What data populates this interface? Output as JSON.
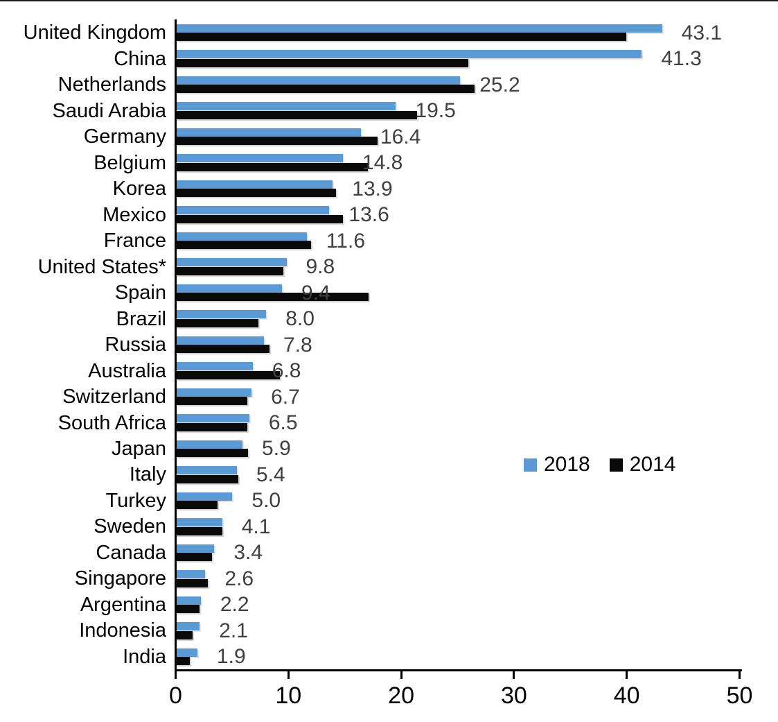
{
  "chart_data": {
    "type": "bar",
    "orientation": "horizontal",
    "title": "",
    "xlabel": "",
    "ylabel": "",
    "xlim": [
      0,
      50
    ],
    "x_ticks": [
      0,
      10,
      20,
      30,
      40,
      50
    ],
    "grid": false,
    "legend": {
      "position": "middle-right",
      "entries": [
        "2018",
        "2014"
      ]
    },
    "categories": [
      "United Kingdom",
      "China",
      "Netherlands",
      "Saudi Arabia",
      "Germany",
      "Belgium",
      "Korea",
      "Mexico",
      "France",
      "United States*",
      "Spain",
      "Brazil",
      "Russia",
      "Australia",
      "Switzerland",
      "South Africa",
      "Japan",
      "Italy",
      "Turkey",
      "Sweden",
      "Canada",
      "Singapore",
      "Argentina",
      "Indonesia",
      "India"
    ],
    "series": [
      {
        "name": "2018",
        "color": "#5B9BD5",
        "values": [
          43.1,
          41.3,
          25.2,
          19.5,
          16.4,
          14.8,
          13.9,
          13.6,
          11.6,
          9.8,
          9.4,
          8.0,
          7.8,
          6.8,
          6.7,
          6.5,
          5.9,
          5.4,
          5.0,
          4.1,
          3.4,
          2.6,
          2.2,
          2.1,
          1.9
        ],
        "labels": [
          "43.1",
          "41.3",
          "25.2",
          "19.5",
          "16.4",
          "14.8",
          "13.9",
          "13.6",
          "11.6",
          "9.8",
          "9.4",
          "8.0",
          "7.8",
          "6.8",
          "6.7",
          "6.5",
          "5.9",
          "5.4",
          "5.0",
          "4.1",
          "3.4",
          "2.6",
          "2.2",
          "2.1",
          "1.9"
        ]
      },
      {
        "name": "2014",
        "color": "#0A0A0A",
        "values": [
          39.9,
          25.9,
          26.5,
          21.4,
          17.9,
          17.0,
          14.2,
          14.8,
          12.0,
          9.5,
          17.1,
          7.3,
          8.3,
          9.2,
          6.3,
          6.3,
          6.4,
          5.5,
          3.7,
          4.1,
          3.2,
          2.8,
          2.1,
          1.5,
          1.2
        ]
      }
    ]
  },
  "colors": {
    "background": "#FFFFFF",
    "axis": "#000000",
    "value_label": "#404040",
    "category_label": "#000000"
  }
}
